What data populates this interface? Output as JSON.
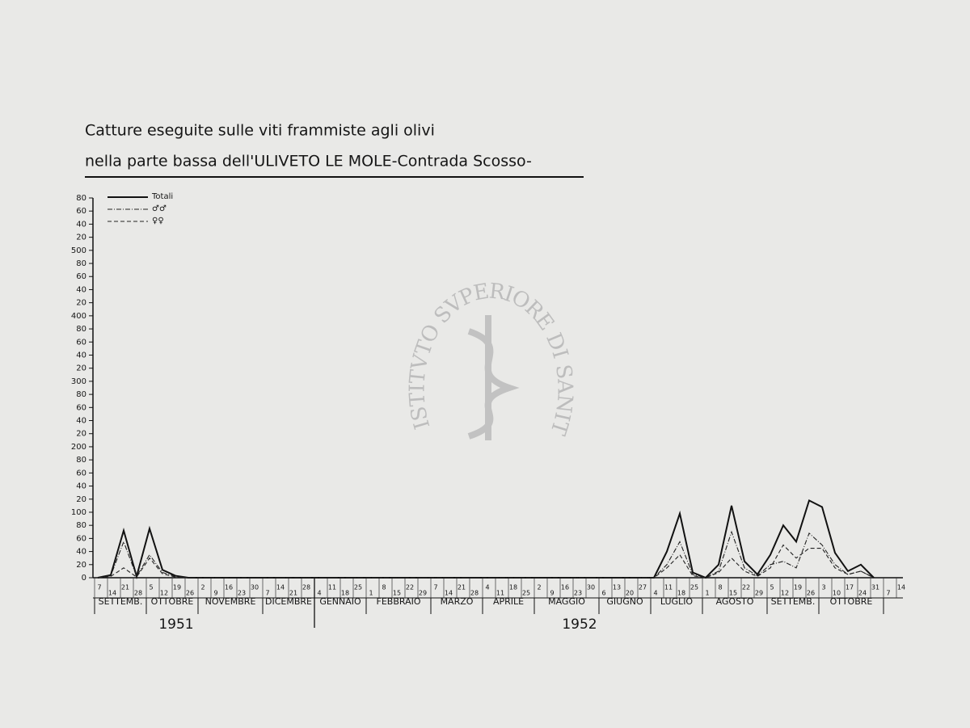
{
  "chart_data": {
    "type": "line",
    "title": "Catture eseguite sulle viti frammiste agli olivi",
    "subtitle": "nella parte bassa dell'ULIVETO LE MOLE-Contrada Scosso-",
    "watermark": "ISTITVTO SVPERIORE DI SANITA",
    "years": [
      {
        "label": "1951",
        "months": [
          {
            "label": "SETTEMB.",
            "days": [
              "7",
              "14",
              "21",
              "28"
            ]
          },
          {
            "label": "OTTOBRE",
            "days": [
              "5",
              "12",
              "19",
              "26"
            ]
          },
          {
            "label": "NOVEMBRE",
            "days": [
              "2",
              "9",
              "16",
              "23",
              "30"
            ]
          },
          {
            "label": "DICEMBRE",
            "days": [
              "7",
              "14",
              "21",
              "28"
            ]
          }
        ]
      },
      {
        "label": "1952",
        "months": [
          {
            "label": "GENNAIO",
            "days": [
              "4",
              "11",
              "18",
              "25"
            ]
          },
          {
            "label": "FEBBRAIO",
            "days": [
              "1",
              "8",
              "15",
              "22",
              "29"
            ]
          },
          {
            "label": "MARZO",
            "days": [
              "7",
              "14",
              "21",
              "28"
            ]
          },
          {
            "label": "APRILE",
            "days": [
              "4",
              "11",
              "18",
              "25"
            ]
          },
          {
            "label": "MAGGIO",
            "days": [
              "2",
              "9",
              "16",
              "23",
              "30"
            ]
          },
          {
            "label": "GIUGNO",
            "days": [
              "6",
              "13",
              "20",
              "27"
            ]
          },
          {
            "label": "LUGLIO",
            "days": [
              "4",
              "11",
              "18",
              "25"
            ]
          },
          {
            "label": "AGOSTO",
            "days": [
              "1",
              "8",
              "15",
              "22",
              "29"
            ]
          },
          {
            "label": "SETTEMB.",
            "days": [
              "5",
              "12",
              "19",
              "26"
            ]
          },
          {
            "label": "OTTOBRE",
            "days": [
              "3",
              "10",
              "17",
              "24",
              "31"
            ]
          },
          {
            "label": null,
            "days": [
              "7",
              "14"
            ]
          }
        ]
      }
    ],
    "series": [
      {
        "name": "Totali",
        "color": "#111111",
        "style": "solid",
        "values": [
          0,
          4,
          72,
          2,
          75,
          12,
          3,
          0,
          0,
          0,
          0,
          0,
          0,
          0,
          0,
          0,
          0,
          0,
          0,
          0,
          0,
          0,
          0,
          0,
          0,
          0,
          0,
          0,
          0,
          0,
          0,
          0,
          0,
          0,
          0,
          0,
          0,
          0,
          0,
          0,
          0,
          0,
          0,
          0,
          40,
          98,
          8,
          0,
          20,
          110,
          25,
          5,
          35,
          80,
          55,
          118,
          108,
          38,
          10,
          20,
          0,
          null,
          null
        ]
      },
      {
        "name": "♂♂",
        "color": "#222222",
        "style": "dashdot",
        "values": [
          0,
          3,
          55,
          2,
          35,
          8,
          2,
          0,
          0,
          0,
          0,
          0,
          0,
          0,
          0,
          0,
          0,
          0,
          0,
          0,
          0,
          0,
          0,
          0,
          0,
          0,
          0,
          0,
          0,
          0,
          0,
          0,
          0,
          0,
          0,
          0,
          0,
          0,
          0,
          0,
          0,
          0,
          0,
          0,
          20,
          55,
          5,
          0,
          10,
          70,
          15,
          3,
          20,
          25,
          15,
          68,
          50,
          20,
          5,
          10,
          0,
          null,
          null
        ]
      },
      {
        "name": "♀♀",
        "color": "#222222",
        "style": "dashed",
        "values": [
          0,
          2,
          15,
          1,
          30,
          6,
          1,
          0,
          0,
          0,
          0,
          0,
          0,
          0,
          0,
          0,
          0,
          0,
          0,
          0,
          0,
          0,
          0,
          0,
          0,
          0,
          0,
          0,
          0,
          0,
          0,
          0,
          0,
          0,
          0,
          0,
          0,
          0,
          0,
          0,
          0,
          0,
          0,
          0,
          15,
          35,
          3,
          0,
          8,
          30,
          10,
          2,
          15,
          50,
          30,
          45,
          45,
          15,
          5,
          10,
          0,
          null,
          null
        ]
      }
    ],
    "ylim": [
      0,
      580
    ],
    "yticks": [
      0,
      20,
      40,
      60,
      80,
      100,
      {
        "value": 120,
        "label": "20"
      },
      {
        "value": 140,
        "label": "40"
      },
      {
        "value": 160,
        "label": "60"
      },
      {
        "value": 180,
        "label": "80"
      },
      200,
      {
        "value": 220,
        "label": "20"
      },
      {
        "value": 240,
        "label": "40"
      },
      {
        "value": 260,
        "label": "60"
      },
      {
        "value": 280,
        "label": "80"
      },
      300,
      {
        "value": 320,
        "label": "20"
      },
      {
        "value": 340,
        "label": "40"
      },
      {
        "value": 360,
        "label": "60"
      },
      {
        "value": 380,
        "label": "80"
      },
      400,
      {
        "value": 420,
        "label": "20"
      },
      {
        "value": 440,
        "label": "40"
      },
      {
        "value": 460,
        "label": "60"
      },
      {
        "value": 480,
        "label": "80"
      },
      500,
      {
        "value": 520,
        "label": "20"
      },
      {
        "value": 540,
        "label": "40"
      },
      {
        "value": 560,
        "label": "60"
      },
      {
        "value": 580,
        "label": "80"
      }
    ],
    "grid": false,
    "legend": "top-left"
  }
}
